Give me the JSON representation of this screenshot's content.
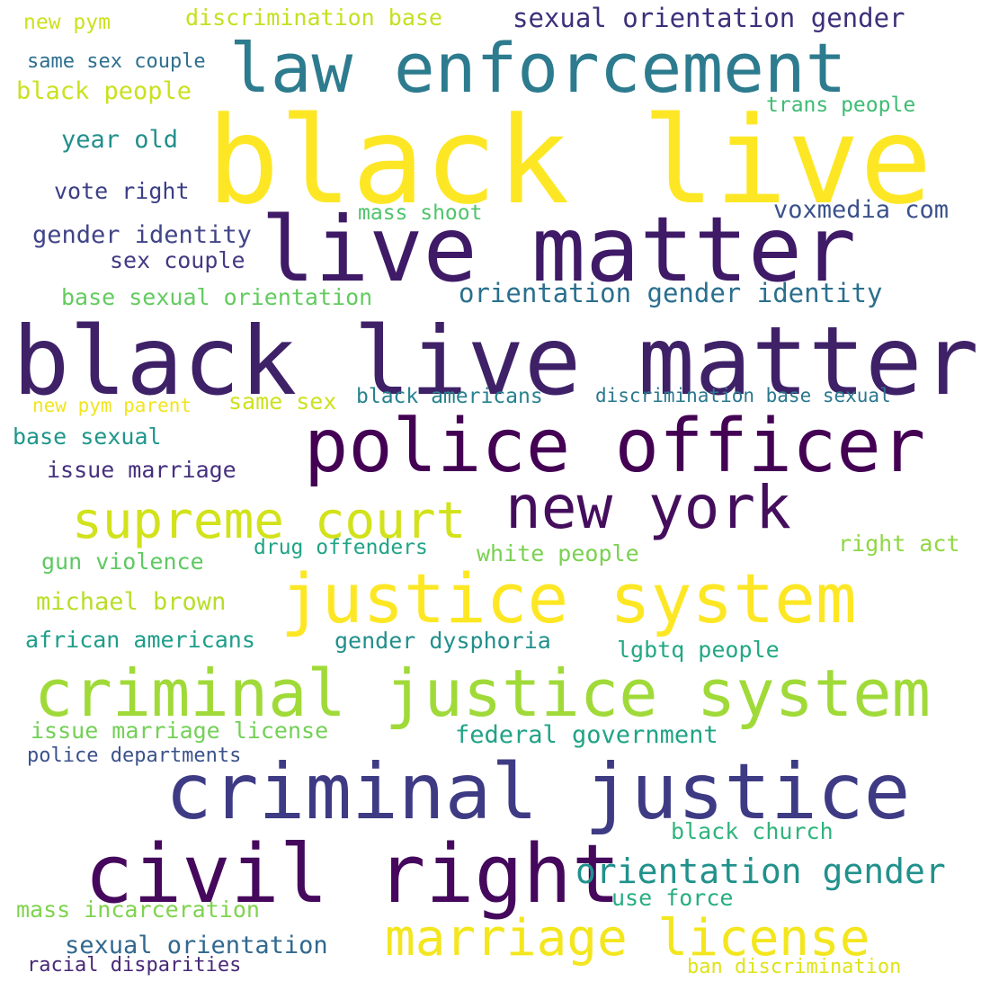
{
  "words": [
    {
      "text": "black live",
      "color": "#fde725"
    },
    {
      "text": "black live matter",
      "color": "#3f2168"
    },
    {
      "text": "live matter",
      "color": "#3f1a67"
    },
    {
      "text": "law enforcement",
      "color": "#2d7b8e"
    },
    {
      "text": "police officer",
      "color": "#440154"
    },
    {
      "text": "criminal justice system",
      "color": "#a0da39"
    },
    {
      "text": "criminal justice",
      "color": "#3e3b84"
    },
    {
      "text": "justice system",
      "color": "#fde725"
    },
    {
      "text": "civil right",
      "color": "#45085c"
    },
    {
      "text": "new york",
      "color": "#440e5d"
    },
    {
      "text": "supreme court",
      "color": "#d2e21b"
    },
    {
      "text": "marriage license",
      "color": "#f3e61e"
    },
    {
      "text": "orientation gender",
      "color": "#21918c"
    },
    {
      "text": "orientation gender identity",
      "color": "#2a6f8e"
    },
    {
      "text": "sexual orientation gender",
      "color": "#3e2f7a"
    },
    {
      "text": "voxmedia com",
      "color": "#3b528b"
    },
    {
      "text": "year old",
      "color": "#218f8c"
    },
    {
      "text": "vote right",
      "color": "#3b3f84"
    },
    {
      "text": "gender identity",
      "color": "#414487"
    },
    {
      "text": "mass shoot",
      "color": "#50c46a"
    },
    {
      "text": "sex couple",
      "color": "#433a83"
    },
    {
      "text": "base sexual orientation",
      "color": "#63cb5f"
    },
    {
      "text": "discrimination base",
      "color": "#c5e021"
    },
    {
      "text": "new pym",
      "color": "#cde11d"
    },
    {
      "text": "same sex couple",
      "color": "#2e6f8e"
    },
    {
      "text": "black people",
      "color": "#cae11f"
    },
    {
      "text": "trans people",
      "color": "#3ebc73"
    },
    {
      "text": "new pym parent",
      "color": "#f1e51d"
    },
    {
      "text": "same sex",
      "color": "#cde11d"
    },
    {
      "text": "black americans",
      "color": "#26828e"
    },
    {
      "text": "discrimination base sexual",
      "color": "#2a788e"
    },
    {
      "text": "base sexual",
      "color": "#1f968b"
    },
    {
      "text": "issue marriage",
      "color": "#46307e"
    },
    {
      "text": "drug offenders",
      "color": "#20a486"
    },
    {
      "text": "white people",
      "color": "#7ad151"
    },
    {
      "text": "right act",
      "color": "#8fd744"
    },
    {
      "text": "gun violence",
      "color": "#5ec962"
    },
    {
      "text": "michael brown",
      "color": "#b8de29"
    },
    {
      "text": "african americans",
      "color": "#1f9e89"
    },
    {
      "text": "gender dysphoria",
      "color": "#218f8c"
    },
    {
      "text": "lgbtq people",
      "color": "#22a884"
    },
    {
      "text": "issue marriage license",
      "color": "#73d056"
    },
    {
      "text": "federal government",
      "color": "#20a386"
    },
    {
      "text": "police departments",
      "color": "#3b528b"
    },
    {
      "text": "black church",
      "color": "#2fb47c"
    },
    {
      "text": "use force",
      "color": "#27ad81"
    },
    {
      "text": "mass incarceration",
      "color": "#7fd34e"
    },
    {
      "text": "sexual orientation",
      "color": "#31688e"
    },
    {
      "text": "racial disparities",
      "color": "#482878"
    },
    {
      "text": "ban discrimination",
      "color": "#dfe318"
    }
  ]
}
